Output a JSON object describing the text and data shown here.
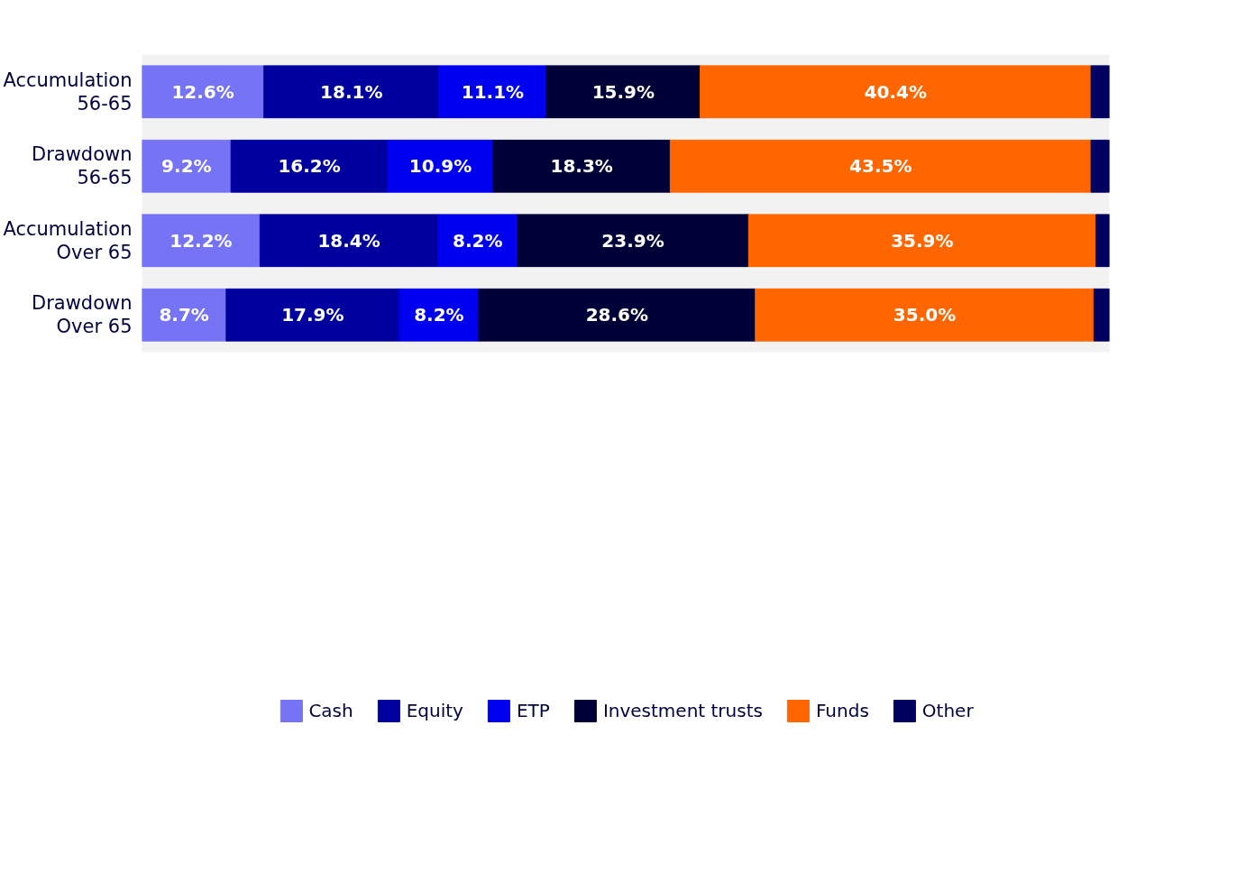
{
  "chart_data": {
    "type": "bar",
    "orientation": "horizontal",
    "stacked": true,
    "legend": "bottom",
    "grid": false,
    "tick_labels": "y",
    "categories": [
      "Accumulation\n56-65",
      "Drawdown\n56-65",
      "Accumulation\nOver 65",
      "Drawdown\nOver 65"
    ],
    "xlim": [
      0,
      100
    ],
    "series": [
      {
        "name": "Cash",
        "color": "#7673f5",
        "values": [
          12.6,
          9.2,
          12.2,
          8.7
        ],
        "value_labels": [
          "12.6%",
          "9.2%",
          "12.2%",
          "8.7%"
        ]
      },
      {
        "name": "Equity",
        "color": "#00009f",
        "values": [
          18.1,
          16.2,
          18.4,
          17.9
        ],
        "value_labels": [
          "18.1%",
          "16.2%",
          "18.4%",
          "17.9%"
        ]
      },
      {
        "name": "ETP",
        "color": "#0000f0",
        "values": [
          11.1,
          10.9,
          8.2,
          8.2
        ],
        "value_labels": [
          "11.1%",
          "10.9%",
          "8.2%",
          "8.2%"
        ]
      },
      {
        "name": "Investment trusts",
        "color": "#000038",
        "values": [
          15.9,
          18.3,
          23.9,
          28.6
        ],
        "value_labels": [
          "15.9%",
          "18.3%",
          "23.9%",
          "28.6%"
        ]
      },
      {
        "name": "Funds",
        "color": "#ff6600",
        "values": [
          40.4,
          43.5,
          35.9,
          35.0
        ],
        "value_labels": [
          "40.4%",
          "43.5%",
          "35.9%",
          "35.0%"
        ]
      },
      {
        "name": "Other",
        "color": "#000060",
        "values": [
          1.9,
          1.9,
          1.4,
          1.6
        ],
        "value_labels": [
          null,
          null,
          null,
          null
        ]
      }
    ]
  }
}
